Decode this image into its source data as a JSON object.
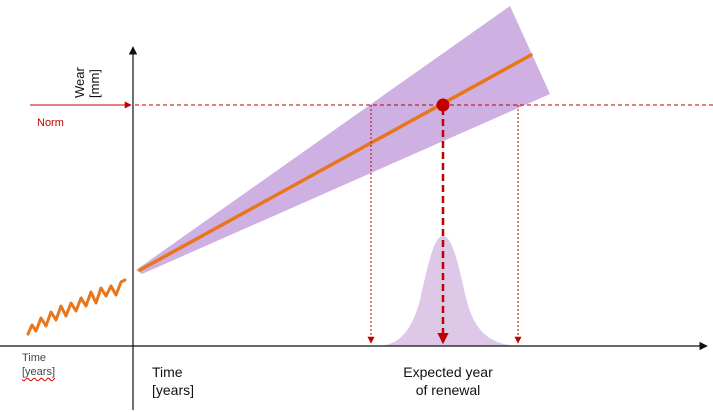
{
  "y_axis": {
    "line1": "Wear",
    "line2": "[mm]"
  },
  "norm_label": "Norm",
  "left_time_label": {
    "line1": "Time",
    "line2": "[years]"
  },
  "x_axis": {
    "line1": "Time",
    "line2": "[years]"
  },
  "renewal_label": {
    "line1": "Expected year",
    "line2": "of renewal"
  },
  "colors": {
    "axis": "#111111",
    "norm": "#c00000",
    "trend": "#e8761c",
    "cone": "#c9a8df",
    "distribution": "#d9c2e6",
    "renewal_point": "#c00000"
  }
}
